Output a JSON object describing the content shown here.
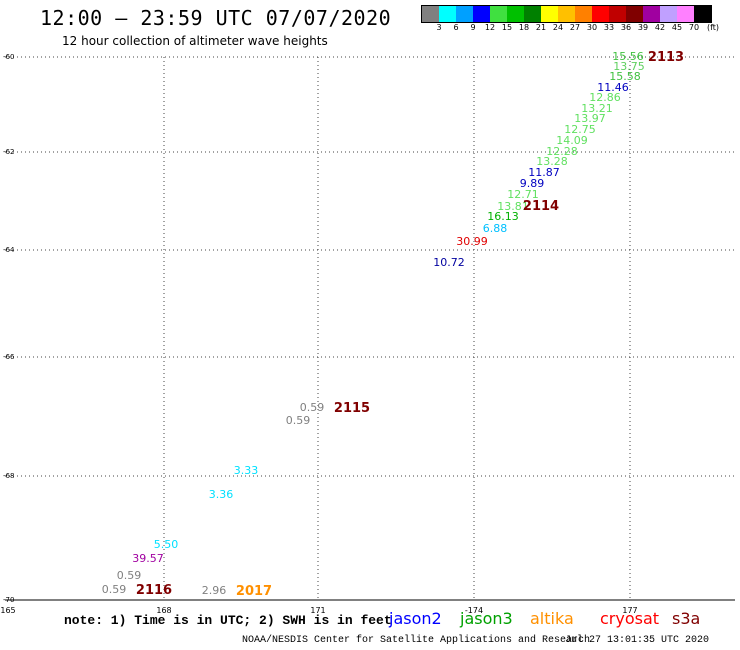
{
  "header": {
    "title": "12:00 — 23:59 UTC 07/07/2020",
    "subtitle": "12 hour collection of altimeter wave heights"
  },
  "legend": {
    "colors": [
      "#808080",
      "#00ffff",
      "#00a0ff",
      "#0000ff",
      "#40e040",
      "#00c000",
      "#008000",
      "#ffff00",
      "#ffc000",
      "#ff8000",
      "#ff0000",
      "#c00000",
      "#800000",
      "#a000a0",
      "#c0a0ff",
      "#ff80ff",
      "#000000"
    ],
    "labels": [
      "3",
      "6",
      "9",
      "12",
      "15",
      "18",
      "21",
      "24",
      "27",
      "30",
      "33",
      "36",
      "39",
      "42",
      "45",
      "70",
      "(ft)"
    ]
  },
  "map": {
    "lat_ticks": [
      "-60",
      "-62",
      "-64",
      "-66",
      "-68",
      "-70"
    ],
    "lon_ticks": [
      "165",
      "168",
      "171",
      "-174",
      "177"
    ],
    "observations": [
      {
        "value": "15.56",
        "color": "#40c040"
      },
      {
        "value": "13.75",
        "color": "#60d060"
      },
      {
        "value": "15.58",
        "color": "#40c040"
      },
      {
        "value": "11.46",
        "color": "#0000c0"
      },
      {
        "value": "12.86",
        "color": "#60e060"
      },
      {
        "value": "13.21",
        "color": "#60e060"
      },
      {
        "value": "13.97",
        "color": "#60e060"
      },
      {
        "value": "12.75",
        "color": "#60e060"
      },
      {
        "value": "14.09",
        "color": "#60e060"
      },
      {
        "value": "12.28",
        "color": "#60e060"
      },
      {
        "value": "13.28",
        "color": "#60e060"
      },
      {
        "value": "11.87",
        "color": "#0000c0"
      },
      {
        "value": "9.89",
        "color": "#0000c0"
      },
      {
        "value": "12.71",
        "color": "#60e060"
      },
      {
        "value": "13.81",
        "color": "#60e060"
      },
      {
        "value": "16.13",
        "color": "#00b000"
      },
      {
        "value": "6.88",
        "color": "#00c0ff"
      },
      {
        "value": "30.99",
        "color": "#e00000"
      },
      {
        "value": "10.72",
        "color": "#0000a0"
      },
      {
        "value": "0.59",
        "color": "#808080"
      },
      {
        "value": "0.59",
        "color": "#808080"
      },
      {
        "value": "3.33",
        "color": "#00e0ff"
      },
      {
        "value": "3.36",
        "color": "#00e0ff"
      },
      {
        "value": "5.50",
        "color": "#00e0ff"
      },
      {
        "value": "39.57",
        "color": "#a000a0"
      },
      {
        "value": "0.59",
        "color": "#808080"
      },
      {
        "value": "0.59",
        "color": "#808080"
      },
      {
        "value": "2.96",
        "color": "#808080"
      }
    ],
    "time_labels": [
      {
        "value": "2113",
        "color": "#800000"
      },
      {
        "value": "2114",
        "color": "#800000"
      },
      {
        "value": "2115",
        "color": "#800000"
      },
      {
        "value": "2116",
        "color": "#800000"
      },
      {
        "value": "2017",
        "color": "#ff9000"
      }
    ]
  },
  "footer": {
    "note": "note: 1) Time is in UTC; 2) SWH is in feet",
    "satellites": [
      {
        "name": "jason2",
        "color": "#0000ff"
      },
      {
        "name": "jason3",
        "color": "#00a000"
      },
      {
        "name": "altika",
        "color": "#ff9000"
      },
      {
        "name": "cryosat",
        "color": "#ff0000"
      },
      {
        "name": "s3a",
        "color": "#800000"
      }
    ],
    "credit": "NOAA/NESDIS Center for Satellite Applications and Research",
    "stamp": "Jul 27 13:01:35 UTC 2020"
  }
}
